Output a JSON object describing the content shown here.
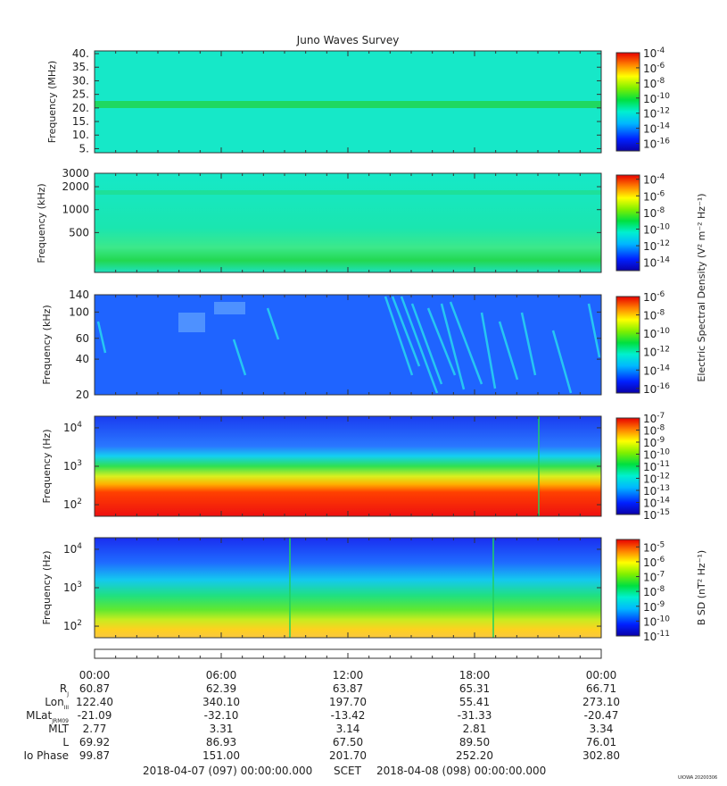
{
  "title": "Juno Waves Survey",
  "footer": {
    "start": "2018-04-07 (097) 00:00:00.000",
    "scet": "SCET",
    "end": "2018-04-08 (098) 00:00:00.000",
    "stamp": "UIOWA 20200306"
  },
  "time_ticks": [
    "00:00",
    "06:00",
    "12:00",
    "18:00",
    "00:00"
  ],
  "ephemeris": [
    {
      "label": "R",
      "sub": "J",
      "values": [
        "60.87",
        "62.39",
        "63.87",
        "65.31",
        "66.71"
      ]
    },
    {
      "label": "Lon",
      "sub": "III",
      "values": [
        "122.40",
        "340.10",
        "197.70",
        "55.41",
        "273.10"
      ]
    },
    {
      "label": "MLat",
      "sub": "JRM09",
      "values": [
        "-21.09",
        "-32.10",
        "-13.42",
        "-31.33",
        "-20.47"
      ]
    },
    {
      "label": "MLT",
      "sub": "",
      "values": [
        "2.77",
        "3.31",
        "3.14",
        "2.81",
        "3.34"
      ]
    },
    {
      "label": "L",
      "sub": "",
      "values": [
        "69.92",
        "86.93",
        "67.50",
        "89.50",
        "76.01"
      ]
    },
    {
      "label": "Io Phase",
      "sub": "",
      "values": [
        "99.87",
        "151.00",
        "201.70",
        "252.20",
        "302.80"
      ]
    }
  ],
  "colorbar_labels": {
    "electric": "Electric Spectral Density (V² m⁻² Hz⁻¹)",
    "magnetic": "B SD (nT² Hz⁻¹)"
  },
  "colors": {
    "background_panel1": "#14e6c8",
    "band_green": "#19d25f",
    "panel3_blue": "#1f64ff"
  },
  "chart_data": [
    {
      "type": "heatmap",
      "ylabel": "Frequency (MHz)",
      "y_scale": "linear",
      "ylim": [
        3.5,
        41
      ],
      "y_ticks": [
        "40.",
        "35.",
        "30.",
        "25.",
        "20.",
        "15.",
        "10.",
        "5."
      ],
      "y_tick_values": [
        40,
        35,
        30,
        25,
        20,
        15,
        10,
        5
      ],
      "features": [
        {
          "name": "band",
          "frequency": 21,
          "unit": "MHz"
        }
      ],
      "colorbar": {
        "ticks": [
          "-4",
          "-6",
          "-8",
          "-10",
          "-12",
          "-14",
          "-16"
        ],
        "base": "10",
        "range": [
          -17,
          -4
        ]
      }
    },
    {
      "type": "heatmap",
      "ylabel": "Frequency (kHz)",
      "y_scale": "log",
      "ylim": [
        150,
        3000
      ],
      "y_ticks": [
        "3000",
        "2000",
        "1000",
        "500"
      ],
      "y_tick_values": [
        3000,
        2000,
        1000,
        500
      ],
      "features": [
        {
          "name": "band",
          "frequency": 1700,
          "unit": "kHz"
        }
      ],
      "colorbar": {
        "ticks": [
          "-4",
          "-6",
          "-8",
          "-10",
          "-12",
          "-14"
        ],
        "base": "10",
        "range": [
          -15,
          -3.5
        ]
      }
    },
    {
      "type": "heatmap",
      "ylabel": "Frequency (kHz)",
      "y_scale": "log",
      "ylim": [
        20,
        140
      ],
      "y_ticks": [
        "140",
        "100",
        "60",
        "40",
        "20"
      ],
      "y_tick_values": [
        140,
        100,
        60,
        40,
        20
      ],
      "colorbar": {
        "ticks": [
          "-6",
          "-8",
          "-10",
          "-12",
          "-14",
          "-16"
        ],
        "base": "10",
        "range": [
          -16.5,
          -6
        ]
      }
    },
    {
      "type": "heatmap",
      "ylabel": "Frequency (Hz)",
      "y_scale": "log",
      "ylim": [
        50,
        20000
      ],
      "y_ticks": [
        "4",
        "3",
        "2"
      ],
      "y_tick_values": [
        10000,
        1000,
        100
      ],
      "colorbar": {
        "ticks": [
          "-7",
          "-8",
          "-9",
          "-10",
          "-11",
          "-12",
          "-13",
          "-14",
          "-15"
        ],
        "base": "10",
        "range": [
          -15,
          -7
        ]
      }
    },
    {
      "type": "heatmap",
      "ylabel": "Frequency (Hz)",
      "y_scale": "log",
      "ylim": [
        50,
        20000
      ],
      "y_ticks": [
        "4",
        "3",
        "2"
      ],
      "y_tick_values": [
        10000,
        1000,
        100
      ],
      "colorbar": {
        "ticks": [
          "-5",
          "-6",
          "-7",
          "-8",
          "-9",
          "-10",
          "-11"
        ],
        "base": "10",
        "range": [
          -11,
          -4.5
        ]
      }
    }
  ]
}
